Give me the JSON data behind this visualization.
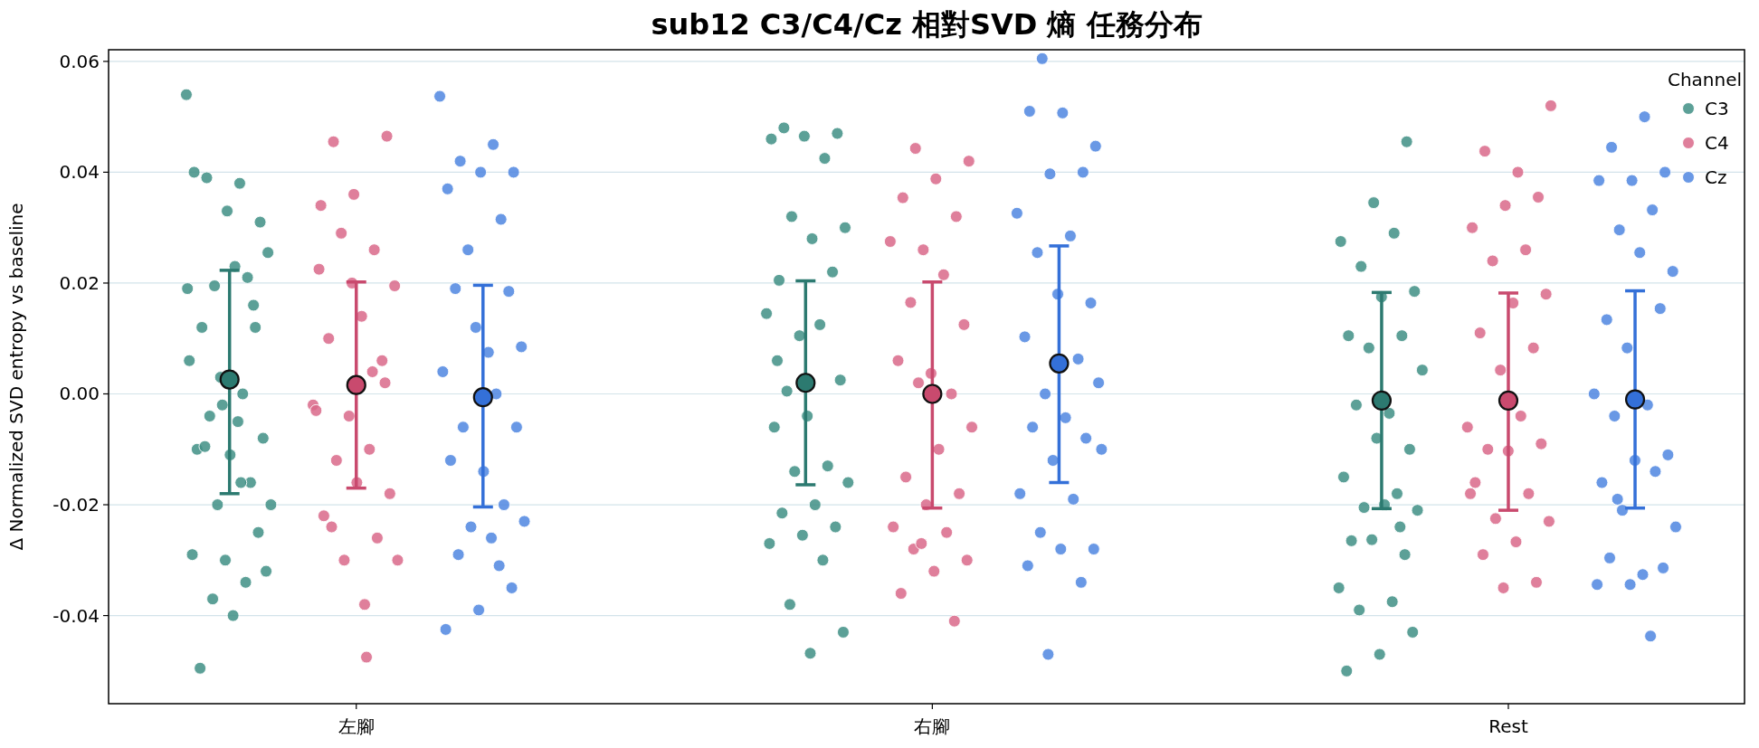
{
  "chart_data": {
    "type": "scatter",
    "title": "sub12 C3/C4/Cz 相對SVD 熵 任務分布",
    "ylabel": "Δ Normalized SVD entropy vs baseline",
    "legend_title": "Channel",
    "legend": "top right",
    "grid": "y",
    "marker": "circle",
    "categories": [
      "左腳",
      "右腳",
      "Rest"
    ],
    "ylim": [
      -0.0559,
      0.0621
    ],
    "yticks": [
      {
        "value": -0.04,
        "label": "-0.04"
      },
      {
        "value": -0.02,
        "label": "-0.02"
      },
      {
        "value": 0,
        "label": "0.00"
      },
      {
        "value": 0.02,
        "label": "0.02"
      },
      {
        "value": 0.04,
        "label": "0.04"
      },
      {
        "value": 0.06,
        "label": "0.06"
      }
    ],
    "series": [
      {
        "name": "C3",
        "color": "#3f8f85",
        "x": [
          "左腳",
          "左腳",
          "左腳",
          "左腳",
          "左腳",
          "左腳",
          "左腳",
          "左腳",
          "左腳",
          "左腳",
          "左腳",
          "左腳",
          "左腳",
          "左腳",
          "左腳",
          "左腳",
          "左腳",
          "左腳",
          "左腳",
          "左腳",
          "左腳",
          "左腳",
          "左腳",
          "左腳",
          "左腳",
          "左腳",
          "左腳",
          "左腳",
          "左腳",
          "左腳",
          "左腳",
          "左腳",
          "左腳",
          "左腳",
          "左腳",
          "左腳",
          "右腳",
          "右腳",
          "右腳",
          "右腳",
          "右腳",
          "右腳",
          "右腳",
          "右腳",
          "右腳",
          "右腳",
          "右腳",
          "右腳",
          "右腳",
          "右腳",
          "右腳",
          "右腳",
          "右腳",
          "右腳",
          "右腳",
          "右腳",
          "右腳",
          "右腳",
          "右腳",
          "右腳",
          "右腳",
          "右腳",
          "右腳",
          "右腳",
          "右腳",
          "右腳",
          "Rest",
          "Rest",
          "Rest",
          "Rest",
          "Rest",
          "Rest",
          "Rest",
          "Rest",
          "Rest",
          "Rest",
          "Rest",
          "Rest",
          "Rest",
          "Rest",
          "Rest",
          "Rest",
          "Rest",
          "Rest",
          "Rest",
          "Rest",
          "Rest",
          "Rest",
          "Rest",
          "Rest",
          "Rest",
          "Rest",
          "Rest",
          "Rest",
          "Rest",
          "Rest"
        ],
        "values": [
          0.054,
          0.038,
          0.039,
          0.031,
          0.033,
          0.04,
          0.021,
          0.0195,
          0.0255,
          0.023,
          0.012,
          0.012,
          -0.002,
          0.006,
          0.0,
          -0.004,
          -0.008,
          -0.011,
          -0.01,
          -0.016,
          -0.02,
          -0.02,
          -0.005,
          -0.0095,
          -0.025,
          -0.03,
          -0.029,
          -0.034,
          -0.037,
          -0.032,
          -0.04,
          -0.0495,
          0.016,
          0.003,
          0.019,
          -0.016,
          0.048,
          0.047,
          0.0465,
          0.046,
          0.0425,
          0.032,
          0.03,
          0.028,
          0.0205,
          0.022,
          0.0105,
          0.0145,
          0.0125,
          0.0005,
          0.0025,
          -0.004,
          -0.006,
          -0.013,
          -0.014,
          -0.016,
          -0.02,
          -0.0215,
          -0.024,
          -0.0255,
          -0.027,
          -0.03,
          -0.038,
          -0.043,
          -0.0468,
          0.006,
          0.0455,
          0.0345,
          0.0275,
          0.029,
          0.023,
          0.0185,
          0.0175,
          0.0105,
          0.0105,
          0.0083,
          0.0043,
          -0.0035,
          -0.002,
          -0.01,
          -0.008,
          -0.015,
          -0.018,
          -0.0205,
          -0.021,
          -0.02,
          -0.0265,
          -0.029,
          -0.0263,
          -0.035,
          -0.0375,
          -0.039,
          -0.043,
          -0.047,
          -0.05,
          -0.024
        ]
      },
      {
        "name": "C4",
        "color": "#d9698a",
        "x": [
          "左腳",
          "左腳",
          "左腳",
          "左腳",
          "左腳",
          "左腳",
          "左腳",
          "左腳",
          "左腳",
          "左腳",
          "左腳",
          "左腳",
          "左腳",
          "左腳",
          "左腳",
          "左腳",
          "左腳",
          "左腳",
          "左腳",
          "左腳",
          "左腳",
          "左腳",
          "左腳",
          "左腳",
          "左腳",
          "左腳",
          "左腳",
          "左腳",
          "右腳",
          "右腳",
          "右腳",
          "右腳",
          "右腳",
          "右腳",
          "右腳",
          "右腳",
          "右腳",
          "右腳",
          "右腳",
          "右腳",
          "右腳",
          "右腳",
          "右腳",
          "右腳",
          "右腳",
          "右腳",
          "右腳",
          "右腳",
          "右腳",
          "右腳",
          "右腳",
          "右腳",
          "右腳",
          "右腳",
          "右腳",
          "Rest",
          "Rest",
          "Rest",
          "Rest",
          "Rest",
          "Rest",
          "Rest",
          "Rest",
          "Rest",
          "Rest",
          "Rest",
          "Rest",
          "Rest",
          "Rest",
          "Rest",
          "Rest",
          "Rest",
          "Rest",
          "Rest",
          "Rest",
          "Rest",
          "Rest",
          "Rest",
          "Rest",
          "Rest",
          "Rest",
          "Rest"
        ],
        "values": [
          -0.002,
          -0.0475,
          0.0455,
          0.0465,
          0.036,
          0.034,
          0.026,
          0.029,
          0.0195,
          0.014,
          0.01,
          0.006,
          -0.004,
          -0.003,
          -0.01,
          -0.012,
          -0.018,
          -0.016,
          -0.022,
          -0.026,
          -0.03,
          -0.03,
          -0.038,
          -0.024,
          0.002,
          0.02,
          0.0225,
          0.004,
          0.0443,
          0.042,
          0.0388,
          0.0354,
          0.032,
          0.026,
          0.0275,
          0.0215,
          0.0165,
          0.0125,
          0.0037,
          0.006,
          0.0,
          0.002,
          -0.006,
          -0.01,
          -0.015,
          -0.018,
          -0.02,
          -0.024,
          -0.025,
          -0.028,
          -0.03,
          -0.032,
          -0.036,
          -0.041,
          -0.027,
          0.052,
          0.04,
          0.0438,
          0.0355,
          0.034,
          0.03,
          0.026,
          0.024,
          0.018,
          0.0164,
          0.011,
          0.0083,
          0.0043,
          -0.006,
          -0.004,
          -0.01,
          -0.009,
          -0.0103,
          -0.016,
          -0.018,
          -0.0225,
          -0.023,
          -0.0267,
          -0.029,
          -0.034,
          -0.035,
          -0.018
        ]
      },
      {
        "name": "Cz",
        "color": "#4f86e0",
        "x": [
          "左腳",
          "左腳",
          "左腳",
          "左腳",
          "左腳",
          "左腳",
          "左腳",
          "左腳",
          "左腳",
          "左腳",
          "左腳",
          "左腳",
          "左腳",
          "左腳",
          "左腳",
          "左腳",
          "左腳",
          "左腳",
          "左腳",
          "左腳",
          "左腳",
          "左腳",
          "左腳",
          "左腳",
          "左腳",
          "左腳",
          "左腳",
          "左腳",
          "右腳",
          "右腳",
          "右腳",
          "右腳",
          "右腳",
          "右腳",
          "右腳",
          "右腳",
          "右腳",
          "右腳",
          "右腳",
          "右腳",
          "右腳",
          "右腳",
          "右腳",
          "右腳",
          "右腳",
          "右腳",
          "右腳",
          "右腳",
          "右腳",
          "右腳",
          "右腳",
          "右腳",
          "右腳",
          "右腳",
          "右腳",
          "右腳",
          "Rest",
          "Rest",
          "Rest",
          "Rest",
          "Rest",
          "Rest",
          "Rest",
          "Rest",
          "Rest",
          "Rest",
          "Rest",
          "Rest",
          "Rest",
          "Rest",
          "Rest",
          "Rest",
          "Rest",
          "Rest",
          "Rest",
          "Rest",
          "Rest",
          "Rest",
          "Rest",
          "Rest",
          "Rest",
          "Rest",
          "Rest",
          "Rest"
        ],
        "values": [
          0.0537,
          0.045,
          0.042,
          0.04,
          0.04,
          0.037,
          0.0315,
          0.026,
          0.0085,
          0.0075,
          0.019,
          0.0185,
          0.012,
          0.004,
          0.0,
          -0.006,
          -0.006,
          -0.014,
          -0.012,
          -0.02,
          -0.024,
          -0.023,
          -0.026,
          -0.029,
          -0.035,
          -0.039,
          -0.0425,
          -0.031,
          0.0605,
          0.0447,
          0.0507,
          0.051,
          0.04,
          0.0397,
          0.0326,
          0.0285,
          0.0255,
          0.0164,
          0.018,
          0.0103,
          0.0063,
          0.0,
          0.002,
          -0.0043,
          -0.006,
          -0.008,
          -0.012,
          -0.018,
          -0.019,
          -0.025,
          -0.028,
          -0.028,
          -0.031,
          -0.034,
          -0.047,
          -0.01,
          0.05,
          0.0445,
          0.04,
          0.0385,
          0.0385,
          0.0332,
          0.0296,
          0.0221,
          0.0255,
          0.0134,
          0.0154,
          0.0083,
          0.0,
          -0.002,
          -0.004,
          -0.011,
          -0.012,
          -0.016,
          -0.014,
          -0.021,
          -0.024,
          -0.0326,
          -0.0296,
          -0.0314,
          -0.0344,
          -0.0344,
          -0.0437,
          -0.019
        ]
      },
      {
        "color": "#2c7a70",
        "x": [
          "左腳",
          "右腳",
          "Rest"
        ],
        "values": [
          0.0026,
          0.002,
          -0.0012
        ],
        "errors": [
          [
            -0.018,
            0.0223
          ],
          [
            -0.0164,
            0.0204
          ],
          [
            -0.0207,
            0.0183
          ]
        ]
      },
      {
        "color": "#c94a6e",
        "x": [
          "左腳",
          "右腳",
          "Rest"
        ],
        "values": [
          0.0016,
          0.0,
          -0.0012
        ],
        "errors": [
          [
            -0.017,
            0.0202
          ],
          [
            -0.0206,
            0.0202
          ],
          [
            -0.021,
            0.0182
          ]
        ]
      },
      {
        "color": "#3470d8",
        "x": [
          "左腳",
          "右腳",
          "Rest"
        ],
        "values": [
          -0.0006,
          0.0055,
          -0.001
        ],
        "errors": [
          [
            -0.0204,
            0.0196
          ],
          [
            -0.016,
            0.0267
          ],
          [
            -0.0206,
            0.0186
          ]
        ]
      }
    ]
  }
}
